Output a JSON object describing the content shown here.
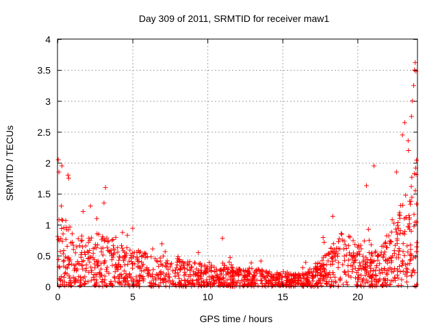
{
  "chart_data": {
    "type": "scatter",
    "title": "Day 309 of 2011, SRMTID for receiver maw1",
    "xlabel": "GPS time / hours",
    "ylabel": "SRMTID / TECUs",
    "xlim": [
      0,
      24
    ],
    "ylim": [
      0,
      4
    ],
    "x_ticks": [
      0,
      5,
      10,
      15,
      20
    ],
    "x_tick_labels": [
      "0",
      "5",
      "10",
      "15",
      "20"
    ],
    "y_ticks": [
      0,
      0.5,
      1,
      1.5,
      2,
      2.5,
      3,
      3.5,
      4
    ],
    "y_tick_labels": [
      "0",
      "0.5",
      "1",
      "1.5",
      "2",
      "2.5",
      "3",
      "3.5",
      "4"
    ],
    "grid": true,
    "marker": "plus",
    "series_color": "#ff0000",
    "envelope": {
      "description": "estimated per-hour range of dense point cloud (data units)",
      "hours": [
        0,
        1,
        2,
        3,
        4,
        5,
        6,
        7,
        8,
        9,
        10,
        11,
        12,
        13,
        14,
        15,
        16,
        17,
        18,
        19,
        20,
        21,
        22,
        23,
        24
      ],
      "typical_max": [
        1.3,
        0.9,
        0.8,
        0.9,
        0.7,
        0.6,
        0.55,
        0.5,
        0.45,
        0.4,
        0.35,
        0.35,
        0.3,
        0.3,
        0.25,
        0.25,
        0.22,
        0.3,
        0.6,
        1.0,
        0.7,
        0.55,
        0.8,
        1.5,
        2.0
      ]
    },
    "notable_points": [
      {
        "x": 0.05,
        "y": 2.05
      },
      {
        "x": 0.1,
        "y": 1.85
      },
      {
        "x": 0.3,
        "y": 1.95
      },
      {
        "x": 0.7,
        "y": 1.8
      },
      {
        "x": 0.75,
        "y": 1.75
      },
      {
        "x": 3.2,
        "y": 1.6
      },
      {
        "x": 3.1,
        "y": 1.35
      },
      {
        "x": 2.2,
        "y": 1.3
      },
      {
        "x": 11.0,
        "y": 0.78
      },
      {
        "x": 21.1,
        "y": 1.95
      },
      {
        "x": 20.6,
        "y": 1.63
      },
      {
        "x": 23.15,
        "y": 2.65
      },
      {
        "x": 23.0,
        "y": 2.45
      },
      {
        "x": 23.6,
        "y": 2.75
      },
      {
        "x": 23.65,
        "y": 3.0
      },
      {
        "x": 23.8,
        "y": 3.5
      },
      {
        "x": 23.85,
        "y": 3.62
      },
      {
        "x": 23.9,
        "y": 3.48
      },
      {
        "x": 23.75,
        "y": 3.25
      },
      {
        "x": 22.6,
        "y": 1.85
      },
      {
        "x": 23.4,
        "y": 2.2
      }
    ],
    "random_seed": 309
  }
}
